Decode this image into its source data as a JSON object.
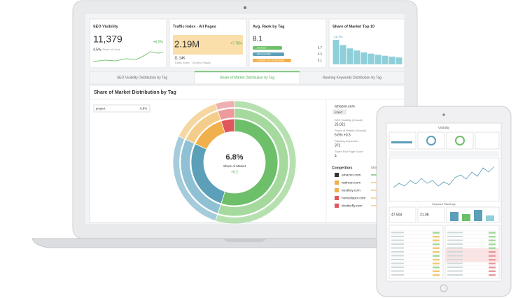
{
  "laptop": {
    "cards": [
      {
        "title": "SEO Visibility",
        "value": "11,379",
        "change": "+6.0%",
        "sub": "4.5%",
        "sub_label": "Share of Voice"
      },
      {
        "title": "Traffic Index - All Pages",
        "value": "2.19M",
        "change": "+7.78%",
        "sub": "11.14K",
        "sub_label": "Traffic Index · Generic Pages"
      },
      {
        "title": "Avg. Rank by Tag",
        "value": "8.1",
        "rows": [
          {
            "label": "...devices",
            "value": "3.7"
          },
          {
            "label": "...dfreccombo",
            "value": "4.2"
          },
          {
            "label": "...Student and Enthusiast",
            "value": "5.1"
          }
        ]
      },
      {
        "title": "Share of Market Top 10",
        "value": "11.7%",
        "chart": {
          "type": "bar",
          "values": [
            11.7,
            9.2,
            7.6,
            6.6,
            5.7,
            5.1,
            4.6,
            4.1,
            3.7,
            3.3
          ],
          "color": "#8fcfd9",
          "ylim": [
            0,
            12
          ]
        }
      }
    ],
    "tabs": [
      "SEO Visibility Distribution by Tag",
      "Share of Market Distribution by Tag",
      "Ranking Keywords Distribution by Tag"
    ],
    "active_tab": 1,
    "panel_title": "Share of Market Distribution by Tag",
    "table": {
      "rows": [
        [
          "project",
          "6.8%"
        ]
      ]
    },
    "sunburst": {
      "type": "pie",
      "values": [
        55,
        27,
        13,
        5
      ],
      "colors": [
        "#6dbf6a",
        "#5b9fb8",
        "#f0b04c",
        "#e0575b"
      ],
      "outer_colors": [
        "#a5d99d",
        "#8fc0d3",
        "#f5cd8a",
        "#ec9a9c"
      ],
      "center_value": "6.8%",
      "center_label": "Share of Market",
      "center_change": "+0.2"
    },
    "details": {
      "domain": "amazon.com",
      "tag": "project",
      "items": [
        {
          "label": "SEO Visibility (Growth)",
          "value": "25,021"
        },
        {
          "label": "Share of Market (Growth)",
          "value": "6.6% +0.3"
        },
        {
          "label": "Ranking Keywords",
          "value": "372"
        },
        {
          "label": "Share Roll Page Score",
          "value": "4"
        }
      ]
    },
    "competitors": {
      "title": "Competitors",
      "extra": "Share of",
      "items": [
        "amazon.com",
        "walmart.com",
        "bestbuy.com",
        "homedepot.com",
        "shutterfly.com"
      ]
    }
  },
  "tablet": {
    "title": "Visibility",
    "section": "Keyword Rankings",
    "values": [
      "47,503",
      "21.0K"
    ]
  }
}
